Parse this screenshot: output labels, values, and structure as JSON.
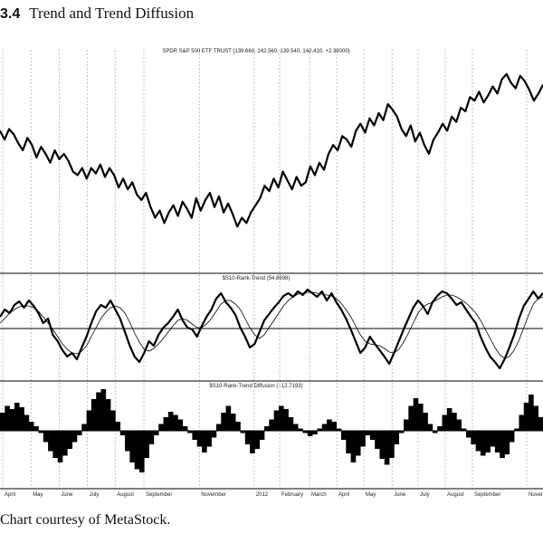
{
  "figure": {
    "number": "3.4",
    "title": "Trend and Trend Diffusion",
    "caption": "Chart courtesy of MetaStock."
  },
  "chart_data": [
    {
      "type": "line",
      "title": "SPDR S&P 500 ETF TRUST (139.660, 142.560, 139.540, 142.410, +2.38000)",
      "ylim": [
        0,
        100
      ],
      "grid": "vertical dotted",
      "series": [
        {
          "name": "SPDR S&P 500 ETF TRUST",
          "y": [
            63,
            58,
            64,
            61,
            56,
            52,
            59,
            55,
            48,
            54,
            50,
            45,
            52,
            47,
            50,
            46,
            40,
            38,
            42,
            36,
            42,
            39,
            44,
            37,
            42,
            38,
            31,
            36,
            30,
            34,
            27,
            24,
            28,
            20,
            14,
            18,
            11,
            17,
            21,
            15,
            23,
            19,
            14,
            25,
            18,
            24,
            28,
            20,
            26,
            17,
            22,
            16,
            9,
            14,
            11,
            17,
            21,
            25,
            32,
            29,
            36,
            31,
            40,
            35,
            30,
            37,
            32,
            34,
            43,
            38,
            45,
            41,
            50,
            55,
            52,
            60,
            58,
            54,
            63,
            67,
            62,
            70,
            66,
            73,
            69,
            78,
            75,
            71,
            64,
            60,
            66,
            57,
            62,
            55,
            50,
            58,
            62,
            67,
            63,
            71,
            68,
            76,
            74,
            82,
            80,
            85,
            79,
            83,
            88,
            84,
            92,
            95,
            90,
            87,
            94,
            91,
            86,
            80,
            84,
            89
          ]
        }
      ]
    },
    {
      "type": "line",
      "title": "$S10-Rank-Trend (54.8698)",
      "ylim": [
        0,
        100
      ],
      "grid": "vertical dotted, horizontal midline",
      "series": [
        {
          "name": "$S10-Rank-Trend",
          "y": [
            62,
            70,
            66,
            75,
            79,
            72,
            80,
            74,
            66,
            55,
            60,
            42,
            35,
            25,
            18,
            22,
            15,
            28,
            40,
            55,
            68,
            75,
            72,
            80,
            70,
            60,
            45,
            30,
            18,
            12,
            22,
            35,
            30,
            42,
            50,
            55,
            62,
            70,
            58,
            50,
            48,
            40,
            52,
            62,
            70,
            82,
            88,
            78,
            72,
            64,
            50,
            40,
            28,
            32,
            45,
            58,
            65,
            72,
            78,
            85,
            88,
            84,
            90,
            86,
            92,
            88,
            84,
            90,
            80,
            88,
            78,
            70,
            60,
            48,
            35,
            22,
            28,
            40,
            32,
            25,
            18,
            10,
            22,
            35,
            48,
            60,
            72,
            80,
            74,
            65,
            78,
            85,
            90,
            88,
            82,
            75,
            78,
            70,
            62,
            55,
            40,
            28,
            18,
            12,
            5,
            15,
            28,
            42,
            60,
            74,
            82,
            90,
            82,
            88
          ]
        },
        {
          "name": "Moving average",
          "y": [
            55,
            60,
            66,
            70,
            73,
            74,
            74,
            72,
            68,
            62,
            55,
            48,
            40,
            32,
            26,
            22,
            21,
            24,
            30,
            40,
            50,
            60,
            67,
            72,
            74,
            72,
            66,
            56,
            44,
            34,
            26,
            24,
            27,
            32,
            38,
            45,
            52,
            58,
            60,
            58,
            54,
            50,
            50,
            54,
            60,
            68,
            76,
            80,
            80,
            76,
            70,
            60,
            50,
            42,
            38,
            42,
            50,
            58,
            66,
            74,
            80,
            84,
            87,
            88,
            89,
            89,
            88,
            87,
            86,
            85,
            82,
            77,
            70,
            62,
            52,
            42,
            35,
            32,
            31,
            30,
            27,
            23,
            22,
            26,
            34,
            44,
            55,
            66,
            73,
            76,
            78,
            81,
            84,
            86,
            86,
            84,
            81,
            77,
            72,
            66,
            58,
            48,
            38,
            28,
            20,
            16,
            18,
            25,
            36,
            50,
            64,
            76,
            82,
            84
          ]
        }
      ]
    },
    {
      "type": "bar",
      "title": "$S10-Rank-Trend Diffusion (−12.7193)",
      "ylim": [
        -100,
        100
      ],
      "series": [
        {
          "name": "$S10-Rank-Trend Diffusion",
          "values": [
            40,
            55,
            48,
            62,
            52,
            35,
            20,
            10,
            -5,
            -25,
            -45,
            -60,
            -70,
            -55,
            -40,
            -25,
            -10,
            15,
            45,
            70,
            85,
            92,
            70,
            45,
            20,
            -10,
            -45,
            -70,
            -85,
            -92,
            -60,
            -30,
            -10,
            15,
            30,
            42,
            35,
            25,
            10,
            -5,
            -20,
            -35,
            -48,
            -35,
            -15,
            15,
            40,
            55,
            38,
            20,
            -5,
            -30,
            -50,
            -40,
            -20,
            10,
            25,
            45,
            55,
            48,
            30,
            15,
            5,
            -5,
            -12,
            -8,
            5,
            15,
            25,
            20,
            5,
            -20,
            -50,
            -70,
            -55,
            -35,
            -10,
            -20,
            -40,
            -62,
            -75,
            -60,
            -30,
            -5,
            25,
            55,
            72,
            60,
            40,
            15,
            -5,
            10,
            35,
            50,
            40,
            25,
            5,
            -15,
            -30,
            -45,
            -55,
            -48,
            -35,
            -48,
            -60,
            -52,
            -25,
            5,
            35,
            62,
            80,
            55,
            30
          ]
        }
      ]
    }
  ],
  "x_axis": {
    "labels": [
      "April",
      "May",
      "June",
      "July",
      "August",
      "September",
      "November",
      "2012",
      "February",
      "March",
      "April",
      "May",
      "June",
      "July",
      "August",
      "September",
      "November"
    ],
    "fractions": [
      0.0,
      0.052,
      0.104,
      0.156,
      0.207,
      0.26,
      0.362,
      0.463,
      0.51,
      0.565,
      0.615,
      0.665,
      0.717,
      0.765,
      0.815,
      0.865,
      0.965
    ]
  },
  "colors": {
    "line": "#000000",
    "ma_line": "#000000",
    "grid": "#9a9a9a",
    "background": "#ffffff"
  }
}
